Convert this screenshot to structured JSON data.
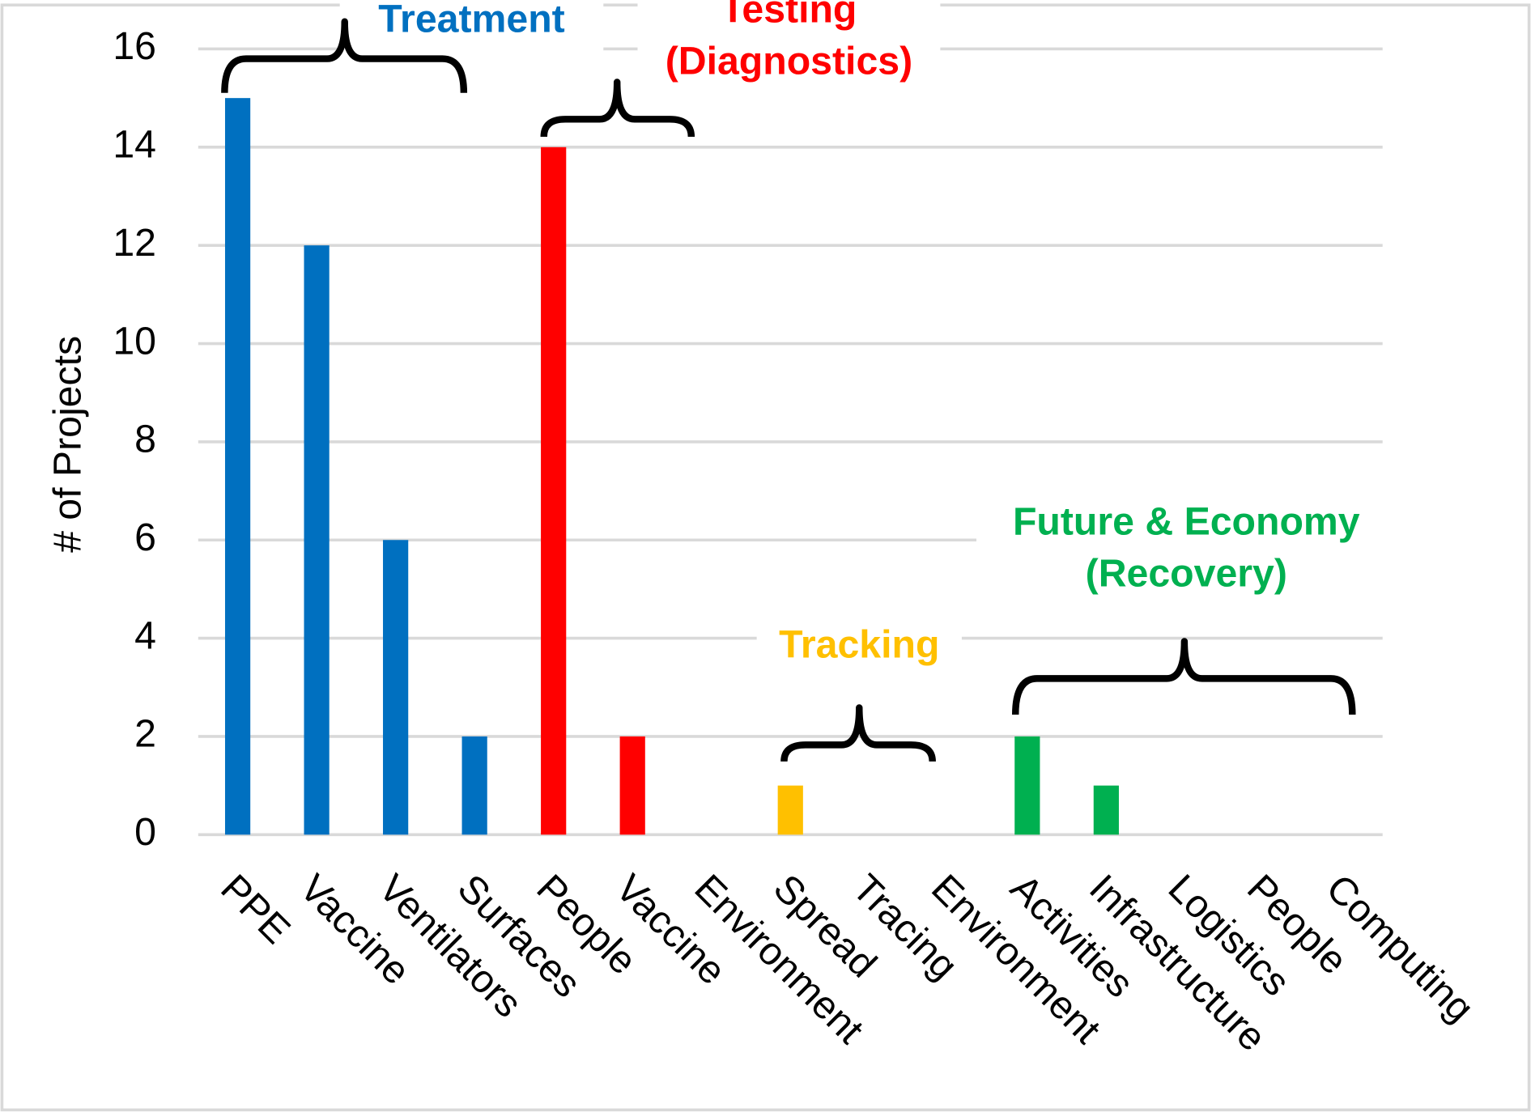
{
  "chart_data": {
    "type": "bar",
    "y_label": "# of Projects",
    "categories": [
      "PPE",
      "Vaccine",
      "Ventilators",
      "Surfaces",
      "People",
      "Vaccine",
      "Environment",
      "Spread",
      "Tracing",
      "Environment",
      "Activities",
      "Infrastructure",
      "Logistics",
      "People",
      "Computing"
    ],
    "values": [
      15,
      12,
      6,
      2,
      14,
      2,
      0,
      1,
      0,
      0,
      2,
      1,
      0,
      0,
      0
    ],
    "colors": [
      "#0070c0",
      "#0070c0",
      "#0070c0",
      "#0070c0",
      "#ff0000",
      "#ff0000",
      "#ff0000",
      "#ffc000",
      "#ffc000",
      "#ffc000",
      "#00b050",
      "#00b050",
      "#00b050",
      "#00b050",
      "#00b050"
    ],
    "ylim": [
      0,
      16
    ],
    "yticks": [
      0,
      2,
      4,
      6,
      8,
      10,
      12,
      14,
      16
    ],
    "grid": true,
    "annotations": [
      {
        "lines": [
          "Treatment"
        ],
        "color": "#0070c0"
      },
      {
        "lines": [
          "Testing",
          "(Diagnostics)"
        ],
        "color": "#ff0000"
      },
      {
        "lines": [
          "Tracking"
        ],
        "color": "#ffc000"
      },
      {
        "lines": [
          "Future & Economy",
          "(Recovery)"
        ],
        "color": "#00b050"
      }
    ]
  }
}
